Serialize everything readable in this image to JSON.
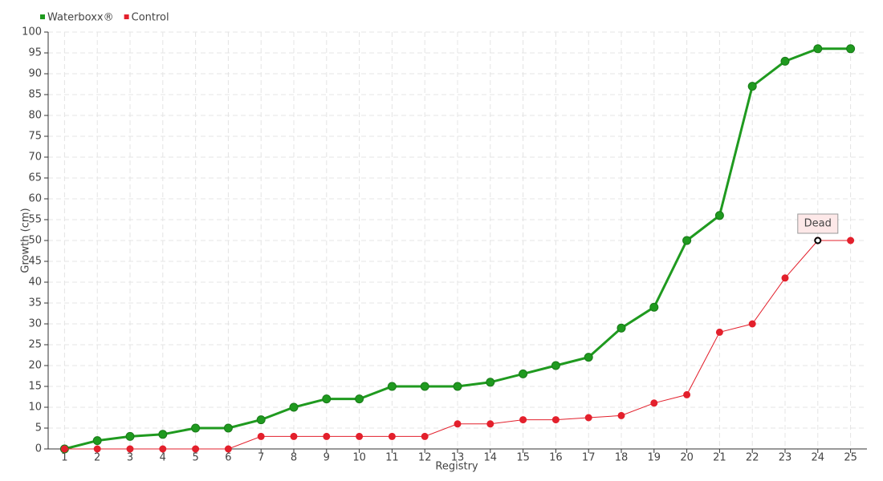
{
  "chart_data": {
    "type": "line",
    "x": [
      1,
      2,
      3,
      4,
      5,
      6,
      7,
      8,
      9,
      10,
      11,
      12,
      13,
      14,
      15,
      16,
      17,
      18,
      19,
      20,
      21,
      22,
      23,
      24,
      25
    ],
    "series": [
      {
        "name": "Waterboxx®",
        "color": "#1f9a1f",
        "values": [
          0,
          2,
          3,
          3.5,
          5,
          5,
          7,
          10,
          12,
          12,
          15,
          15,
          15,
          16,
          18,
          20,
          22,
          29,
          34,
          50,
          56,
          87,
          93,
          96,
          96
        ]
      },
      {
        "name": "Control",
        "color": "#e3202c",
        "values": [
          0,
          0,
          0,
          0,
          0,
          0,
          3,
          3,
          3,
          3,
          3,
          3,
          6,
          6,
          7,
          7,
          7.5,
          8,
          11,
          13,
          28,
          30,
          41,
          50,
          50
        ]
      }
    ],
    "xlabel": "Registry",
    "ylabel": "Growth (cm)",
    "xlim": [
      0.5,
      25.5
    ],
    "xticks": [
      1,
      2,
      3,
      4,
      5,
      6,
      7,
      8,
      9,
      10,
      11,
      12,
      13,
      14,
      15,
      16,
      17,
      18,
      19,
      20,
      21,
      22,
      23,
      24,
      25
    ],
    "ylim": [
      0,
      100
    ],
    "yticks": [
      0,
      5,
      10,
      15,
      20,
      25,
      30,
      35,
      40,
      45,
      50,
      55,
      60,
      65,
      70,
      75,
      80,
      85,
      90,
      95,
      100
    ],
    "grid": true,
    "legend": "top-left",
    "annotation": {
      "text": "Dead",
      "x": 24,
      "y": 50
    }
  }
}
